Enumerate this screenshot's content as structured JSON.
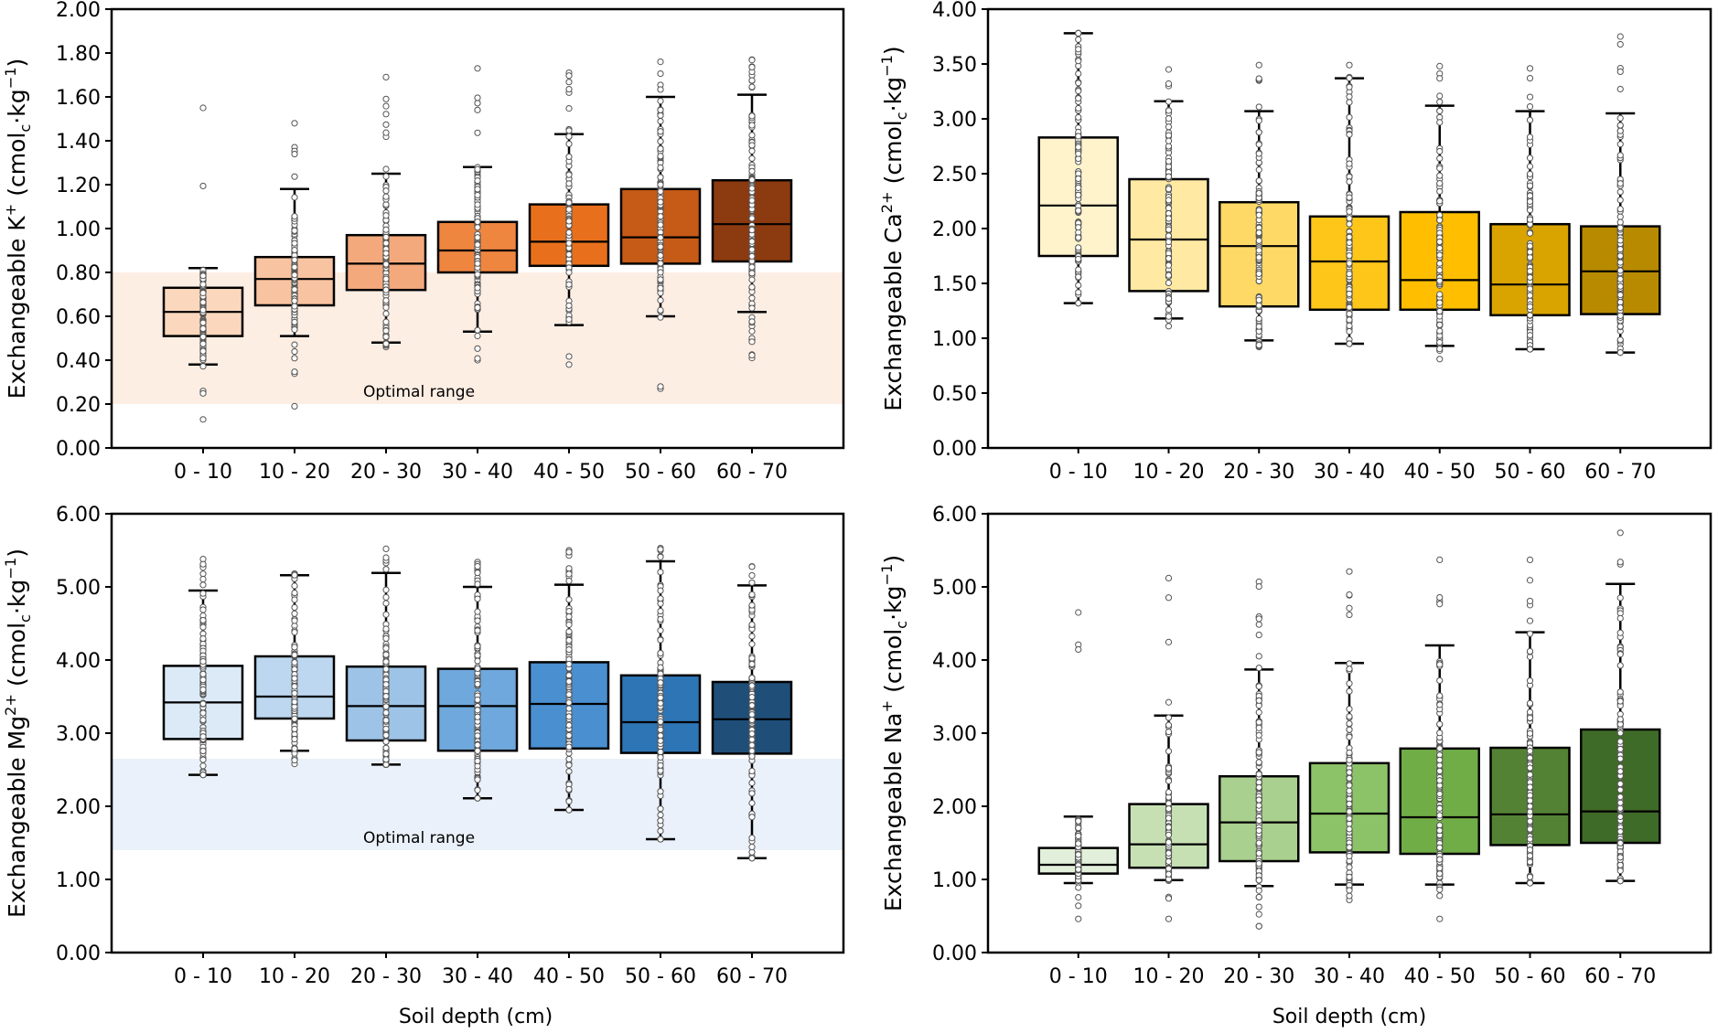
{
  "figure": {
    "x_axis_label": "Soil depth (cm)",
    "band_label": "Optimal range"
  },
  "chart_data": [
    {
      "id": "k",
      "type": "box",
      "ylabel_main": "Exchangeable K",
      "ylabel_sup": "+",
      "ylabel_unit_open": " (cmol",
      "ylabel_unit_sub": "c",
      "ylabel_unit_mid": "·kg",
      "ylabel_unit_sup": "−1",
      "ylabel_unit_close": ")",
      "ylim": [
        0,
        2.0
      ],
      "yticks": [
        "0.00",
        "0.20",
        "0.40",
        "0.60",
        "0.80",
        "1.00",
        "1.20",
        "1.40",
        "1.60",
        "1.80",
        "2.00"
      ],
      "band": [
        0.2,
        0.8
      ],
      "band_color": "#fdeee4",
      "categories": [
        "0 - 10",
        "10 - 20",
        "20 - 30",
        "30 - 40",
        "40 - 50",
        "50 - 60",
        "60 - 70"
      ],
      "colors": [
        "#fbd8bd",
        "#f8c3a0",
        "#f4a97c",
        "#ef8640",
        "#e8701c",
        "#c65a17",
        "#8c3a10"
      ],
      "boxes": [
        {
          "min": 0.38,
          "q1": 0.51,
          "median": 0.62,
          "q3": 0.73,
          "max": 0.82,
          "pmin": 0.13,
          "pmax": 1.55
        },
        {
          "min": 0.51,
          "q1": 0.65,
          "median": 0.77,
          "q3": 0.87,
          "max": 1.18,
          "pmin": 0.19,
          "pmax": 1.48
        },
        {
          "min": 0.48,
          "q1": 0.72,
          "median": 0.84,
          "q3": 0.97,
          "max": 1.25,
          "pmin": 0.46,
          "pmax": 1.69
        },
        {
          "min": 0.53,
          "q1": 0.8,
          "median": 0.9,
          "q3": 1.03,
          "max": 1.28,
          "pmin": 0.4,
          "pmax": 1.73
        },
        {
          "min": 0.56,
          "q1": 0.83,
          "median": 0.94,
          "q3": 1.11,
          "max": 1.43,
          "pmin": 0.38,
          "pmax": 1.71
        },
        {
          "min": 0.6,
          "q1": 0.84,
          "median": 0.96,
          "q3": 1.18,
          "max": 1.6,
          "pmin": 0.27,
          "pmax": 1.76
        },
        {
          "min": 0.62,
          "q1": 0.85,
          "median": 1.02,
          "q3": 1.22,
          "max": 1.61,
          "pmin": 0.41,
          "pmax": 1.77
        }
      ]
    },
    {
      "id": "ca",
      "type": "box",
      "ylabel_main": "Exchangeable Ca",
      "ylabel_sup": "2+",
      "ylabel_unit_open": " (cmol",
      "ylabel_unit_sub": "c",
      "ylabel_unit_mid": "·kg",
      "ylabel_unit_sup": "−1",
      "ylabel_unit_close": ")",
      "ylim": [
        0,
        4.0
      ],
      "yticks": [
        "0.00",
        "0.50",
        "1.00",
        "1.50",
        "2.00",
        "2.50",
        "3.00",
        "3.50",
        "4.00"
      ],
      "band": null,
      "band_color": "",
      "categories": [
        "0 - 10",
        "10 - 20",
        "20 - 30",
        "30 - 40",
        "40 - 50",
        "50 - 60",
        "60 - 70"
      ],
      "colors": [
        "#fff3cc",
        "#ffe9a3",
        "#ffd966",
        "#ffc61a",
        "#ffbf00",
        "#d9a400",
        "#b88a00"
      ],
      "boxes": [
        {
          "min": 1.32,
          "q1": 1.75,
          "median": 2.21,
          "q3": 2.83,
          "max": 3.78,
          "pmin": 1.32,
          "pmax": 3.78
        },
        {
          "min": 1.18,
          "q1": 1.43,
          "median": 1.9,
          "q3": 2.45,
          "max": 3.16,
          "pmin": 1.11,
          "pmax": 3.45
        },
        {
          "min": 0.98,
          "q1": 1.29,
          "median": 1.84,
          "q3": 2.24,
          "max": 3.07,
          "pmin": 0.92,
          "pmax": 3.49
        },
        {
          "min": 0.95,
          "q1": 1.26,
          "median": 1.7,
          "q3": 2.11,
          "max": 3.37,
          "pmin": 0.95,
          "pmax": 3.49
        },
        {
          "min": 0.93,
          "q1": 1.26,
          "median": 1.53,
          "q3": 2.15,
          "max": 3.12,
          "pmin": 0.81,
          "pmax": 3.48
        },
        {
          "min": 0.9,
          "q1": 1.21,
          "median": 1.49,
          "q3": 2.04,
          "max": 3.07,
          "pmin": 0.9,
          "pmax": 3.46
        },
        {
          "min": 0.87,
          "q1": 1.22,
          "median": 1.61,
          "q3": 2.02,
          "max": 3.05,
          "pmin": 0.87,
          "pmax": 3.75
        }
      ]
    },
    {
      "id": "mg",
      "type": "box",
      "ylabel_main": "Exchangeable Mg",
      "ylabel_sup": "2+",
      "ylabel_unit_open": " (cmol",
      "ylabel_unit_sub": "c",
      "ylabel_unit_mid": "·kg",
      "ylabel_unit_sup": "−1",
      "ylabel_unit_close": ")",
      "ylim": [
        0,
        6.0
      ],
      "yticks": [
        "0.00",
        "1.00",
        "2.00",
        "3.00",
        "4.00",
        "5.00",
        "6.00"
      ],
      "band": [
        1.4,
        2.65
      ],
      "band_color": "#eaf1fa",
      "categories": [
        "0 - 10",
        "10 - 20",
        "20 - 30",
        "30 - 40",
        "40 - 50",
        "50 - 60",
        "60 - 70"
      ],
      "colors": [
        "#dceaf7",
        "#bcd7ef",
        "#9dc3e6",
        "#6fa8dc",
        "#4a8fd0",
        "#2e75b6",
        "#1f4e79"
      ],
      "boxes": [
        {
          "min": 2.43,
          "q1": 2.92,
          "median": 3.42,
          "q3": 3.92,
          "max": 4.95,
          "pmin": 2.43,
          "pmax": 5.38
        },
        {
          "min": 2.76,
          "q1": 3.2,
          "median": 3.5,
          "q3": 4.05,
          "max": 5.16,
          "pmin": 2.58,
          "pmax": 5.18
        },
        {
          "min": 2.57,
          "q1": 2.9,
          "median": 3.37,
          "q3": 3.91,
          "max": 5.19,
          "pmin": 2.57,
          "pmax": 5.52
        },
        {
          "min": 2.11,
          "q1": 2.76,
          "median": 3.37,
          "q3": 3.88,
          "max": 5.0,
          "pmin": 2.11,
          "pmax": 5.34
        },
        {
          "min": 1.95,
          "q1": 2.79,
          "median": 3.4,
          "q3": 3.97,
          "max": 5.03,
          "pmin": 1.95,
          "pmax": 5.5
        },
        {
          "min": 1.55,
          "q1": 2.73,
          "median": 3.15,
          "q3": 3.79,
          "max": 5.35,
          "pmin": 1.55,
          "pmax": 5.53
        },
        {
          "min": 1.29,
          "q1": 2.72,
          "median": 3.19,
          "q3": 3.7,
          "max": 5.02,
          "pmin": 1.29,
          "pmax": 5.28
        }
      ]
    },
    {
      "id": "na",
      "type": "box",
      "ylabel_main": "Exchangeable Na",
      "ylabel_sup": "+",
      "ylabel_unit_open": " (cmol",
      "ylabel_unit_sub": "c",
      "ylabel_unit_mid": "·kg",
      "ylabel_unit_sup": "−1",
      "ylabel_unit_close": ")",
      "ylim": [
        0,
        6.0
      ],
      "yticks": [
        "0.00",
        "1.00",
        "2.00",
        "3.00",
        "4.00",
        "5.00",
        "6.00"
      ],
      "band": null,
      "band_color": "",
      "categories": [
        "0 - 10",
        "10 - 20",
        "20 - 30",
        "30 - 40",
        "40 - 50",
        "50 - 60",
        "60 - 70"
      ],
      "colors": [
        "#e2efda",
        "#c6e0b4",
        "#a9d08e",
        "#8cc368",
        "#70ad47",
        "#548235",
        "#3f6b28"
      ],
      "boxes": [
        {
          "min": 0.95,
          "q1": 1.08,
          "median": 1.2,
          "q3": 1.43,
          "max": 1.86,
          "pmin": 0.46,
          "pmax": 4.65
        },
        {
          "min": 0.99,
          "q1": 1.16,
          "median": 1.48,
          "q3": 2.03,
          "max": 3.24,
          "pmin": 0.46,
          "pmax": 5.12
        },
        {
          "min": 0.91,
          "q1": 1.25,
          "median": 1.78,
          "q3": 2.41,
          "max": 3.87,
          "pmin": 0.36,
          "pmax": 5.07
        },
        {
          "min": 0.93,
          "q1": 1.37,
          "median": 1.9,
          "q3": 2.59,
          "max": 3.96,
          "pmin": 0.72,
          "pmax": 5.21
        },
        {
          "min": 0.93,
          "q1": 1.35,
          "median": 1.85,
          "q3": 2.79,
          "max": 4.2,
          "pmin": 0.46,
          "pmax": 5.37
        },
        {
          "min": 0.95,
          "q1": 1.47,
          "median": 1.89,
          "q3": 2.8,
          "max": 4.38,
          "pmin": 0.95,
          "pmax": 5.37
        },
        {
          "min": 0.98,
          "q1": 1.5,
          "median": 1.93,
          "q3": 3.05,
          "max": 5.04,
          "pmin": 0.98,
          "pmax": 5.74
        }
      ]
    }
  ]
}
